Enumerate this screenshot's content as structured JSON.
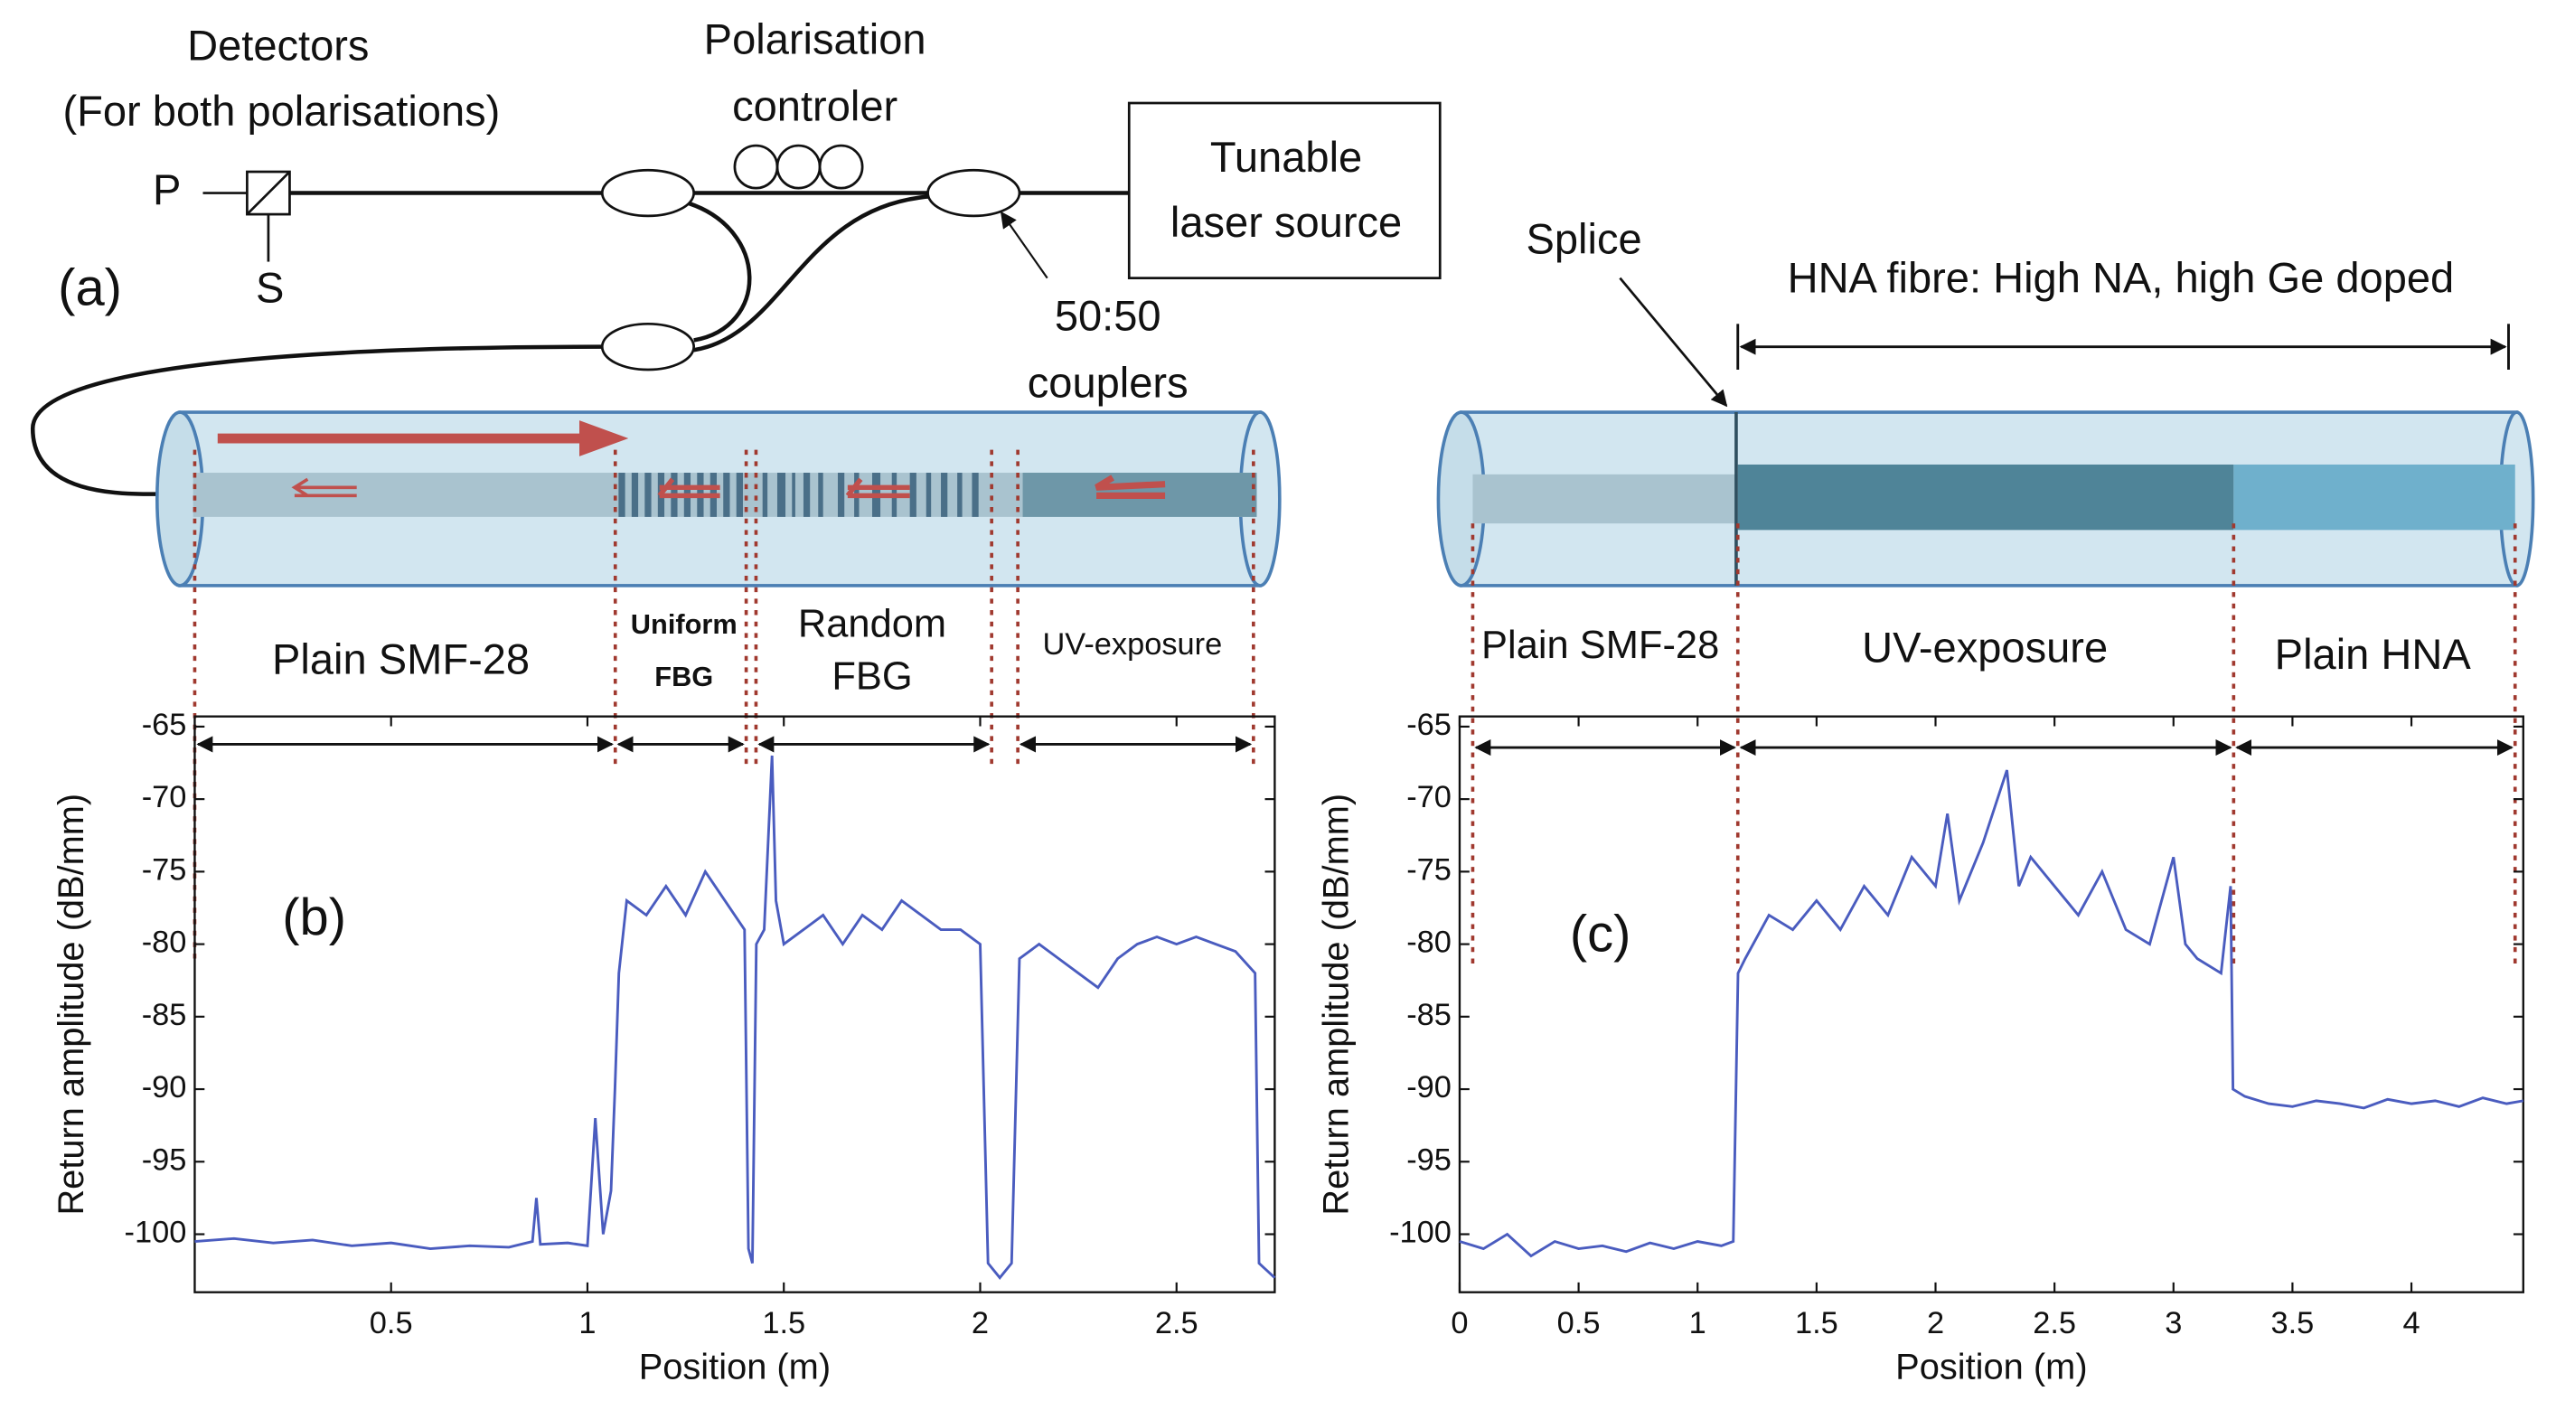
{
  "diagram": {
    "panel_label": "(a)",
    "detectors": "Detectors",
    "detectors_note": "(For both polarisations)",
    "p": "P",
    "s": "S",
    "controller_1": "Polarisation",
    "controller_2": "controler",
    "laser_1": "Tunable",
    "laser_2": "laser source",
    "coupler_1": "50:50",
    "coupler_2": "couplers",
    "splice": "Splice",
    "hna": "HNA fibre: High NA, high Ge doped",
    "sections_a": [
      "Plain SMF-28",
      "Uniform",
      "FBG",
      "Random",
      "FBG",
      "UV-exposure"
    ],
    "sections_c": [
      "Plain SMF-28",
      "UV-exposure",
      "Plain HNA"
    ]
  },
  "chart_data": [
    {
      "type": "line",
      "panel_label": "(b)",
      "x_label": "Position (m)",
      "y_label": "Return amplitude (dB/mm)",
      "xlim": [
        0,
        2.75
      ],
      "ylim": [
        -104,
        -64.3
      ],
      "xticks": [
        0.5,
        1,
        1.5,
        2,
        2.5
      ],
      "yticks": [
        -65,
        -70,
        -75,
        -80,
        -85,
        -90,
        -95,
        -100
      ],
      "color": "#4a5cbf",
      "x": [
        0,
        0.1,
        0.2,
        0.3,
        0.4,
        0.5,
        0.6,
        0.7,
        0.8,
        0.86,
        0.87,
        0.88,
        0.95,
        1.0,
        1.02,
        1.04,
        1.06,
        1.07,
        1.08,
        1.1,
        1.15,
        1.2,
        1.25,
        1.3,
        1.35,
        1.4,
        1.41,
        1.42,
        1.43,
        1.45,
        1.47,
        1.48,
        1.5,
        1.55,
        1.6,
        1.65,
        1.7,
        1.75,
        1.8,
        1.85,
        1.9,
        1.95,
        2.0,
        2.02,
        2.05,
        2.08,
        2.1,
        2.15,
        2.2,
        2.25,
        2.3,
        2.35,
        2.4,
        2.45,
        2.5,
        2.55,
        2.6,
        2.65,
        2.7,
        2.71,
        2.75
      ],
      "values": [
        -100.5,
        -100.3,
        -100.6,
        -100.4,
        -100.8,
        -100.6,
        -101,
        -100.8,
        -100.9,
        -100.5,
        -97.5,
        -100.7,
        -100.6,
        -100.8,
        -92,
        -100,
        -97,
        -90,
        -82,
        -77,
        -78,
        -76,
        -78,
        -75,
        -77,
        -79,
        -101,
        -102,
        -80,
        -79,
        -67,
        -77,
        -80,
        -79,
        -78,
        -80,
        -78,
        -79,
        -77,
        -78,
        -79,
        -79,
        -80,
        -102,
        -103,
        -102,
        -81,
        -80,
        -81,
        -82,
        -83,
        -81,
        -80,
        -79.5,
        -80,
        -79.5,
        -80,
        -80.5,
        -82,
        -102,
        -103
      ]
    },
    {
      "type": "line",
      "panel_label": "(c)",
      "x_label": "Position (m)",
      "y_label": "Return amplitude (dB/mm)",
      "xlim": [
        0,
        4.47
      ],
      "ylim": [
        -104,
        -64.3
      ],
      "xticks": [
        0,
        0.5,
        1,
        1.5,
        2,
        2.5,
        3,
        3.5,
        4
      ],
      "yticks": [
        -65,
        -70,
        -75,
        -80,
        -85,
        -90,
        -95,
        -100
      ],
      "color": "#4a5cbf",
      "x": [
        0,
        0.1,
        0.2,
        0.3,
        0.4,
        0.5,
        0.6,
        0.7,
        0.8,
        0.9,
        1.0,
        1.1,
        1.15,
        1.17,
        1.2,
        1.3,
        1.4,
        1.5,
        1.6,
        1.7,
        1.8,
        1.9,
        2.0,
        2.05,
        2.1,
        2.2,
        2.3,
        2.35,
        2.4,
        2.5,
        2.6,
        2.7,
        2.8,
        2.9,
        3.0,
        3.05,
        3.1,
        3.2,
        3.24,
        3.25,
        3.3,
        3.4,
        3.5,
        3.6,
        3.7,
        3.8,
        3.9,
        4.0,
        4.1,
        4.2,
        4.3,
        4.4,
        4.47
      ],
      "values": [
        -100.5,
        -101,
        -100,
        -101.5,
        -100.5,
        -101,
        -100.8,
        -101.2,
        -100.6,
        -101,
        -100.5,
        -100.8,
        -100.5,
        -82,
        -81,
        -78,
        -79,
        -77,
        -79,
        -76,
        -78,
        -74,
        -76,
        -71,
        -77,
        -73,
        -68,
        -76,
        -74,
        -76,
        -78,
        -75,
        -79,
        -80,
        -74,
        -80,
        -81,
        -82,
        -76,
        -90,
        -90.5,
        -91,
        -91.2,
        -90.8,
        -91,
        -91.3,
        -90.7,
        -91,
        -90.8,
        -91.2,
        -90.6,
        -91,
        -90.8
      ]
    }
  ]
}
